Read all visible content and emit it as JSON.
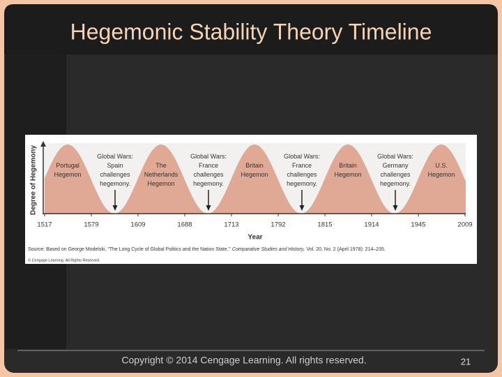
{
  "title": "Hegemonic Stability Theory Timeline",
  "figure": {
    "y_label": "Degree of Hegemony",
    "x_label": "Year",
    "x_ticks": [
      1517,
      1579,
      1609,
      1688,
      1713,
      1792,
      1815,
      1914,
      1945,
      2009
    ],
    "hegemons": [
      [
        "Portugal",
        "Hegemon"
      ],
      [
        "The",
        "Netherlands",
        "Hegemon"
      ],
      [
        "Britain",
        "Hegemon"
      ],
      [
        "Britain",
        "Hegemon"
      ],
      [
        "U.S.",
        "Hegemon"
      ]
    ],
    "wars": [
      [
        "Global Wars:",
        "Spain",
        "challenges",
        "hegemony."
      ],
      [
        "Global Wars:",
        "France",
        "challenges",
        "hegemony."
      ],
      [
        "Global Wars:",
        "France",
        "challenges",
        "hegemony."
      ],
      [
        "Global Wars:",
        "Germany",
        "challenges",
        "hegemony."
      ]
    ],
    "source": [
      "Source: Based on George Modelski, “The Long Cycle of Global Politics and the Nation State,”",
      "Comparative Studies and History,",
      "Vol. 20, No. 2 (April 1978): 214–235."
    ],
    "credit": "© Cengage Learning. All Rights Reserved."
  },
  "footer": {
    "copyright": "Copyright ©  2014 Cengage Learning. All rights reserved.",
    "page": "21"
  }
}
